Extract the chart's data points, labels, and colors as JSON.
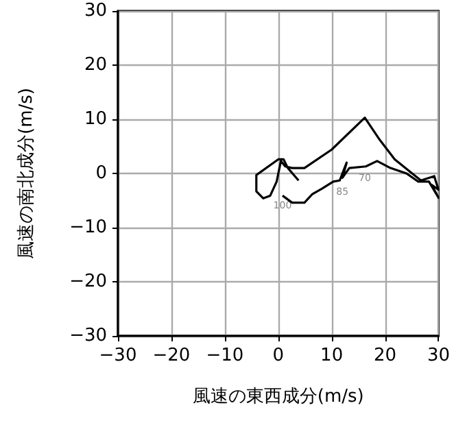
{
  "chart_data": {
    "type": "line",
    "xlabel": "風速の東西成分(m/s)",
    "ylabel": "風速の南北成分(m/s)",
    "x": [
      0.8,
      2.6,
      4.9,
      6.4,
      8.2,
      10.3,
      11.5,
      12.8,
      12,
      13.3,
      16.4,
      18.5,
      21,
      24,
      26.2,
      28.2,
      30,
      28.7,
      30,
      29.5,
      29.2,
      26.7,
      21.8,
      19,
      16.2,
      10,
      4.9,
      2.6,
      1.3,
      0.5,
      -0.3,
      -1.5,
      -2.8,
      -4.1,
      -4.1,
      0,
      1,
      1.8,
      3.8
    ],
    "series": [
      {
        "color": "#000000",
        "values": [
          -4.1,
          -5.4,
          -5.4,
          -3.8,
          -2.8,
          -1.5,
          -1.3,
          2,
          -0.8,
          1,
          1.3,
          2.3,
          1,
          0,
          -1.5,
          -1.5,
          -4.5,
          -2.1,
          -3,
          -1.5,
          -0.5,
          -1.3,
          2.6,
          6.2,
          10.3,
          4.4,
          1,
          1,
          1.3,
          2.3,
          -1.5,
          -4.1,
          -4.6,
          -3.3,
          -0.3,
          2.6,
          2.6,
          1,
          -1.3
        ]
      }
    ],
    "xlim": [
      -30,
      30
    ],
    "xticks": [
      -30,
      -20,
      -10,
      0,
      10,
      20,
      30
    ],
    "ylim": [
      -30,
      30
    ],
    "yticks": [
      -30,
      -20,
      -10,
      0,
      10,
      20,
      30
    ],
    "grid": true,
    "marker": "none",
    "line_style": "solid",
    "annotations": [
      {
        "text": "100",
        "x": 0.8,
        "y": -4.1
      },
      {
        "text": "85",
        "x": 12,
        "y": -1.5
      },
      {
        "text": "70",
        "x": 16.2,
        "y": 1
      }
    ]
  }
}
